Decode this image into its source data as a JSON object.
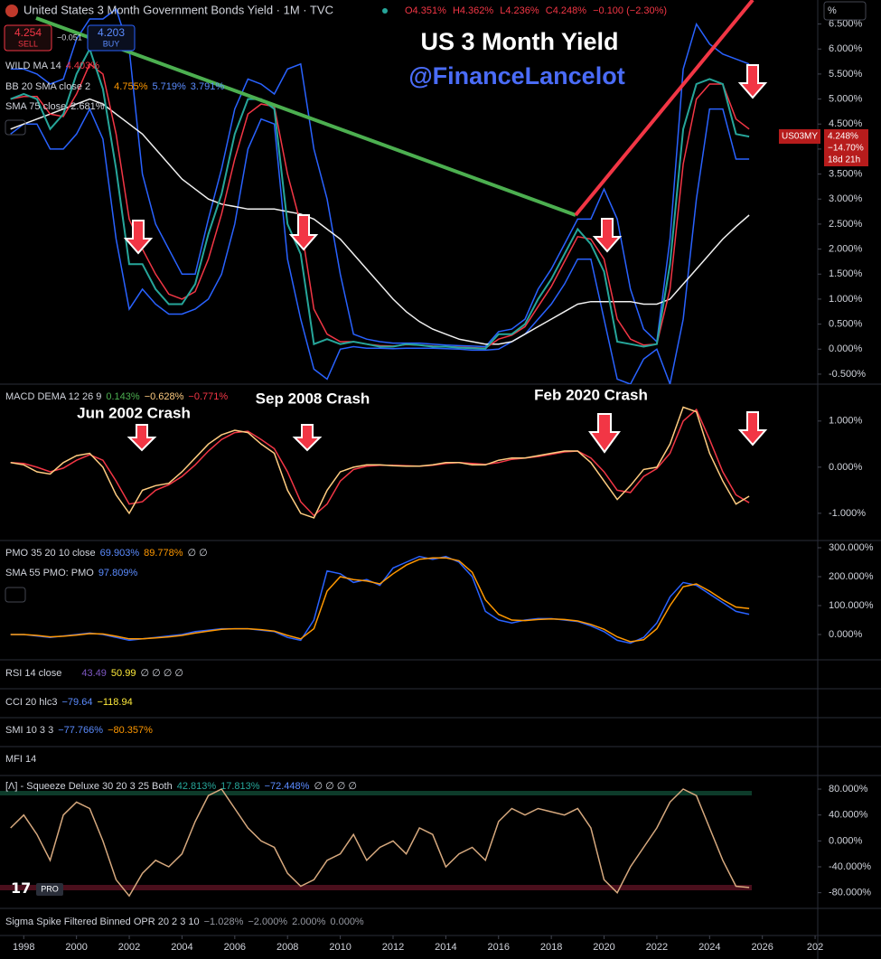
{
  "header": {
    "title": "United States 3 Month Government Bonds Yield · 1M · TVC",
    "open": "O4.351%",
    "high": "H4.362%",
    "low": "L4.236%",
    "close": "C4.248%",
    "change": "−0.100 (−2.30%)",
    "sell_price": "4.254",
    "sell": "SELL",
    "spread": "−0.051",
    "buy_price": "4.203",
    "buy": "BUY",
    "axis_unit": "%",
    "logo": "PRO"
  },
  "overlay": {
    "title": "US 3 Month Yield",
    "handle": "@FinanceLancelot"
  },
  "price_label": {
    "price": "4.248%",
    "change": "−14.70%",
    "countdown": "18d 21h"
  },
  "legends": {
    "bb": {
      "name": "BB 20 SMA close 2",
      "values": [
        "4.755%",
        "5.719%",
        "3.791%"
      ]
    },
    "wild_ma": "4.403%",
    "sma75": "2.681%",
    "macd": {
      "name": "MACD DEMA 12 26 9",
      "values": [
        "0.143%",
        "−0.628%",
        "−0.771%"
      ]
    },
    "pmo": {
      "name": "PMO 35 20 10 close",
      "values": [
        "69.903%",
        "89.778%",
        "∅ ∅"
      ]
    },
    "pmo_sma": {
      "name": "SMA 55 PMO: PMO",
      "values": [
        "97.809%"
      ]
    },
    "rsi": {
      "name": "RSI 14 close",
      "values": [
        "43.49",
        "50.99",
        "∅ ∅ ∅ ∅"
      ]
    },
    "cci": {
      "name": "CCI 20 hlc3",
      "values": [
        "−79.64",
        "−118.94"
      ]
    },
    "smi": {
      "name": "SMI 10 3 3",
      "values": [
        "−77.766%",
        "−80.357%"
      ]
    },
    "mfi": {
      "name": "MFI 14"
    },
    "squeeze": {
      "name": "[Λ] - Squeeze Deluxe 30 20 3 25 Both",
      "values": [
        "42.813%",
        "17.813%",
        "−72.448%",
        "∅ ∅ ∅ ∅"
      ]
    },
    "sigma": {
      "name": "Sigma Spike Filtered Binned OPR 20 2 3 10",
      "values": [
        "−1.028%",
        "−2.000%",
        "2.000%",
        "0.000%"
      ]
    }
  },
  "annotations": [
    "Jun 2002 Crash",
    "Sep 2008 Crash",
    "Feb 2020 Crash"
  ],
  "chart_data": [
    {
      "type": "line",
      "x": [
        1997.5,
        1998,
        1998.5,
        1999,
        1999.5,
        2000,
        2000.5,
        2001,
        2001.5,
        2002,
        2002.5,
        2003,
        2003.5,
        2004,
        2004.5,
        2005,
        2005.5,
        2006,
        2006.5,
        2007,
        2007.5,
        2008,
        2008.5,
        2009,
        2009.5,
        2010,
        2010.5,
        2011,
        2011.5,
        2012,
        2012.5,
        2013,
        2013.5,
        2014,
        2014.5,
        2015,
        2015.5,
        2016,
        2016.5,
        2017,
        2017.5,
        2018,
        2018.5,
        2019,
        2019.5,
        2020,
        2020.5,
        2021,
        2021.5,
        2022,
        2022.5,
        2023,
        2023.5,
        2024,
        2024.5,
        2025,
        2025.5
      ],
      "xlim": [
        1997.1,
        2028.1
      ],
      "xticks": [
        1998,
        2000,
        2002,
        2004,
        2006,
        2008,
        2010,
        2012,
        2014,
        2016,
        2018,
        2020,
        2022,
        2024,
        2026,
        {
          "value": 2028,
          "label": "202"
        }
      ],
      "ylim": [
        -0.7,
        6.98
      ],
      "yticks": [
        {
          "value": -0.5,
          "label": "-0.500%"
        },
        {
          "value": 0,
          "label": "0.000%"
        },
        {
          "value": 0.5,
          "label": "0.500%"
        },
        {
          "value": 1,
          "label": "1.000%"
        },
        {
          "value": 1.5,
          "label": "1.500%"
        },
        {
          "value": 2,
          "label": "2.000%"
        },
        {
          "value": 2.5,
          "label": "2.500%"
        },
        {
          "value": 3,
          "label": "3.000%"
        },
        {
          "value": 3.5,
          "label": "3.500%"
        },
        {
          "value": 4,
          "label": "4.000%"
        },
        {
          "value": 4.5,
          "label": "4.500%"
        },
        {
          "value": 5,
          "label": "5.000%"
        },
        {
          "value": 5.5,
          "label": "5.500%"
        },
        {
          "value": 6,
          "label": "6.000%"
        },
        {
          "value": 6.5,
          "label": "6.500%"
        }
      ],
      "grid": false,
      "series": [
        {
          "color": "#2962ff",
          "values": [
            5.6,
            5.6,
            5.5,
            5.3,
            5.4,
            6.2,
            6.6,
            6.6,
            6.8,
            6.0,
            3.5,
            2.5,
            2.0,
            1.5,
            1.5,
            2.6,
            3.6,
            4.8,
            5.4,
            5.3,
            5.1,
            5.6,
            5.7,
            4.0,
            3.0,
            1.5,
            0.3,
            0.2,
            0.15,
            0.12,
            0.12,
            0.12,
            0.1,
            0.08,
            0.07,
            0.06,
            0.05,
            0.35,
            0.4,
            0.6,
            1.2,
            1.6,
            2.1,
            2.6,
            2.6,
            3.2,
            2.6,
            1.2,
            0.4,
            0.15,
            2.2,
            5.6,
            6.5,
            6.1,
            5.9,
            5.8,
            5.7
          ]
        },
        {
          "color": "#2962ff",
          "values": [
            4.3,
            4.5,
            4.5,
            4.0,
            4.0,
            4.3,
            4.8,
            4.2,
            2.2,
            0.8,
            1.2,
            0.9,
            0.7,
            0.7,
            0.8,
            1.0,
            1.5,
            2.5,
            4.0,
            4.6,
            4.5,
            1.8,
            0.6,
            -0.4,
            -0.6,
            0.0,
            0.05,
            0.02,
            0.02,
            0.01,
            0.02,
            0.02,
            0.02,
            0.01,
            0.0,
            -0.02,
            -0.02,
            0.0,
            0.15,
            0.3,
            0.6,
            0.9,
            1.3,
            1.8,
            1.8,
            0.6,
            -0.6,
            -0.7,
            -0.2,
            0.0,
            -0.7,
            0.6,
            3.0,
            4.8,
            4.8,
            3.8,
            3.8
          ]
        },
        {
          "name": "SMA 75 close",
          "color": "#f0f0f0",
          "values": [
            4.4,
            4.5,
            4.6,
            4.7,
            4.8,
            4.9,
            5.0,
            4.9,
            4.7,
            4.5,
            4.3,
            4.0,
            3.7,
            3.4,
            3.2,
            3.0,
            2.9,
            2.85,
            2.8,
            2.8,
            2.8,
            2.75,
            2.7,
            2.6,
            2.4,
            2.2,
            1.9,
            1.6,
            1.3,
            1.0,
            0.75,
            0.55,
            0.4,
            0.3,
            0.2,
            0.15,
            0.1,
            0.1,
            0.15,
            0.3,
            0.45,
            0.6,
            0.75,
            0.9,
            0.95,
            0.95,
            0.95,
            0.95,
            0.9,
            0.9,
            1.0,
            1.3,
            1.6,
            1.9,
            2.2,
            2.45,
            2.68
          ]
        },
        {
          "name": "WILD MA 14",
          "color": "#f23645",
          "values": [
            5.0,
            5.05,
            5.05,
            4.7,
            4.65,
            5.1,
            5.7,
            5.5,
            4.3,
            2.6,
            2.0,
            1.5,
            1.1,
            1.0,
            1.15,
            1.8,
            2.7,
            3.8,
            4.7,
            4.9,
            4.85,
            3.5,
            2.5,
            0.8,
            0.3,
            0.15,
            0.15,
            0.1,
            0.07,
            0.06,
            0.09,
            0.08,
            0.06,
            0.05,
            0.04,
            0.03,
            0.02,
            0.2,
            0.28,
            0.45,
            0.85,
            1.25,
            1.75,
            2.25,
            2.2,
            1.8,
            0.6,
            0.2,
            0.08,
            0.1,
            1.2,
            3.7,
            5.0,
            5.3,
            5.3,
            4.6,
            4.4
          ]
        },
        {
          "name": "US03MY",
          "color": "#26a69a",
          "values": [
            5.0,
            5.1,
            5.0,
            4.4,
            4.7,
            5.5,
            6.0,
            5.2,
            3.6,
            1.7,
            1.7,
            1.2,
            0.9,
            0.9,
            1.3,
            2.3,
            3.1,
            4.3,
            5.0,
            5.0,
            4.8,
            2.5,
            1.9,
            0.1,
            0.2,
            0.1,
            0.15,
            0.1,
            0.05,
            0.05,
            0.1,
            0.08,
            0.05,
            0.05,
            0.03,
            0.02,
            0.01,
            0.3,
            0.3,
            0.5,
            1.0,
            1.4,
            1.9,
            2.4,
            2.1,
            1.55,
            0.15,
            0.1,
            0.05,
            0.1,
            1.7,
            4.4,
            5.3,
            5.4,
            5.3,
            4.3,
            4.25
          ]
        }
      ]
    },
    {
      "type": "line",
      "ylim": [
        -1.59,
        1.8
      ],
      "yticks": [
        {
          "value": 1,
          "label": "1.000%"
        },
        {
          "value": 0,
          "label": "0.000%"
        },
        {
          "value": -1,
          "label": "-1.000%"
        }
      ],
      "series": [
        {
          "color": "#f23645",
          "values": [
            0.1,
            0.08,
            0.0,
            -0.1,
            -0.02,
            0.15,
            0.27,
            0.15,
            -0.3,
            -0.8,
            -0.75,
            -0.5,
            -0.38,
            -0.2,
            0.05,
            0.35,
            0.6,
            0.75,
            0.78,
            0.6,
            0.4,
            -0.1,
            -0.75,
            -1.05,
            -0.8,
            -0.3,
            -0.05,
            0.02,
            0.04,
            0.04,
            0.03,
            0.02,
            0.04,
            0.08,
            0.1,
            0.08,
            0.06,
            0.1,
            0.17,
            0.2,
            0.23,
            0.28,
            0.33,
            0.35,
            0.2,
            -0.1,
            -0.5,
            -0.55,
            -0.2,
            -0.03,
            0.3,
            1.0,
            1.25,
            0.6,
            -0.1,
            -0.6,
            -0.77
          ]
        },
        {
          "color": "#ffcc80",
          "values": [
            0.1,
            0.05,
            -0.1,
            -0.15,
            0.1,
            0.25,
            0.3,
            0.0,
            -0.6,
            -1.0,
            -0.5,
            -0.4,
            -0.35,
            -0.1,
            0.2,
            0.5,
            0.7,
            0.8,
            0.75,
            0.5,
            0.3,
            -0.5,
            -1.0,
            -1.1,
            -0.5,
            -0.1,
            0.0,
            0.05,
            0.05,
            0.03,
            0.02,
            0.02,
            0.05,
            0.1,
            0.1,
            0.05,
            0.05,
            0.15,
            0.2,
            0.2,
            0.25,
            0.3,
            0.35,
            0.35,
            0.1,
            -0.3,
            -0.7,
            -0.4,
            -0.05,
            0.0,
            0.5,
            1.3,
            1.2,
            0.3,
            -0.3,
            -0.8,
            -0.63
          ]
        }
      ]
    },
    {
      "type": "line",
      "ylim": [
        -87.5,
        325
      ],
      "yticks": [
        {
          "value": 300,
          "label": "300.000%"
        },
        {
          "value": 200,
          "label": "200.000%"
        },
        {
          "value": 100,
          "label": "100.000%"
        },
        {
          "value": 0,
          "label": "0.000%"
        }
      ],
      "series": [
        {
          "color": "#2962ff",
          "values": [
            0,
            0,
            -5,
            -10,
            -5,
            0,
            5,
            0,
            -10,
            -20,
            -15,
            -10,
            -5,
            0,
            10,
            15,
            20,
            20,
            20,
            15,
            10,
            -10,
            -20,
            50,
            220,
            210,
            180,
            190,
            170,
            230,
            250,
            270,
            260,
            270,
            250,
            200,
            80,
            50,
            40,
            50,
            55,
            55,
            50,
            45,
            30,
            10,
            -20,
            -30,
            -10,
            40,
            130,
            180,
            170,
            140,
            110,
            80,
            70
          ]
        },
        {
          "color": "#ff9800",
          "values": [
            0,
            0,
            -3,
            -8,
            -6,
            -2,
            3,
            2,
            -6,
            -15,
            -15,
            -12,
            -8,
            -3,
            5,
            12,
            18,
            20,
            20,
            17,
            12,
            -3,
            -15,
            20,
            150,
            200,
            190,
            185,
            175,
            210,
            240,
            260,
            265,
            265,
            255,
            215,
            120,
            70,
            50,
            48,
            52,
            54,
            52,
            47,
            35,
            18,
            -8,
            -25,
            -18,
            20,
            100,
            165,
            175,
            150,
            120,
            95,
            90
          ]
        }
      ]
    },
    {
      "type": "line",
      "ylim": [
        -104.2,
        98.2
      ],
      "yticks": [
        {
          "value": 80,
          "label": "80.000%"
        },
        {
          "value": 40,
          "label": "40.000%"
        },
        {
          "value": 0,
          "label": "0.000%"
        },
        {
          "value": -40,
          "label": "-40.000%"
        },
        {
          "value": -80,
          "label": "-80.000%"
        }
      ],
      "series": [
        {
          "color": "#d7a97e",
          "values": [
            20,
            40,
            10,
            -30,
            40,
            60,
            50,
            0,
            -60,
            -85,
            -50,
            -30,
            -40,
            -20,
            30,
            70,
            80,
            50,
            20,
            0,
            -10,
            -50,
            -70,
            -60,
            -30,
            -20,
            10,
            -30,
            -10,
            0,
            -20,
            20,
            10,
            -40,
            -20,
            -10,
            -30,
            30,
            50,
            40,
            50,
            45,
            40,
            50,
            20,
            -60,
            -80,
            -40,
            -10,
            20,
            60,
            80,
            70,
            20,
            -30,
            -70,
            -72
          ]
        }
      ]
    }
  ]
}
